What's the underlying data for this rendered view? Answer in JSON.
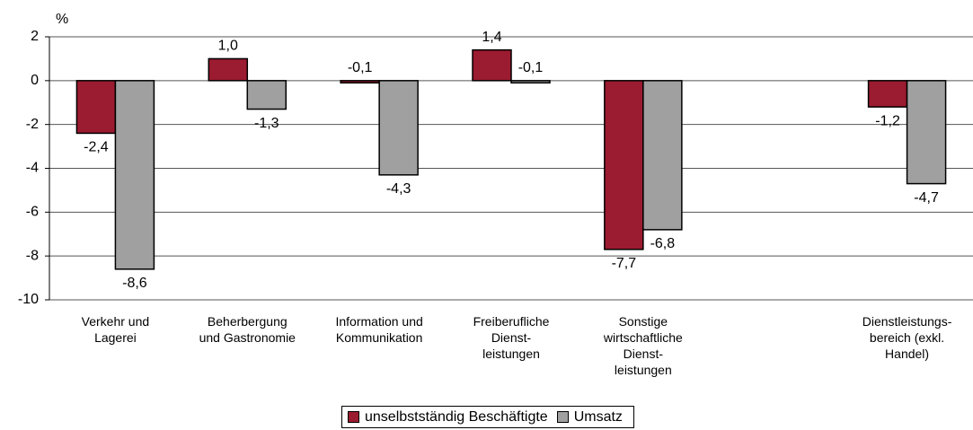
{
  "chart_data": {
    "type": "bar",
    "ylabel": "%",
    "categories": [
      "Verkehr und\nLagerei",
      "Beherbergung\nund Gastronomie",
      "Information und\nKommunikation",
      "Freiberufliche\nDienst-\nleistungen",
      "Sonstige\nwirtschaftliche\nDienst-\nleistungen",
      null,
      "Dienstleistungs-\nbereich (exkl.\nHandel)"
    ],
    "series": [
      {
        "name": "unselbstständig Beschäftigte",
        "color": "#9b1b30",
        "values": [
          -2.4,
          1.0,
          -0.1,
          1.4,
          -7.7,
          null,
          -1.2
        ],
        "value_labels": [
          "-2,4",
          "1,0",
          "-0,1",
          "1,4",
          "-7,7",
          null,
          "-1,2"
        ]
      },
      {
        "name": "Umsatz",
        "color": "#a0a0a0",
        "values": [
          -8.6,
          -1.3,
          -4.3,
          -0.1,
          -6.8,
          null,
          -4.7
        ],
        "value_labels": [
          "-8,6",
          "-1,3",
          "-4,3",
          "-0,1",
          "-6,8",
          null,
          "-4,7"
        ]
      }
    ],
    "ylim": [
      -10,
      2
    ],
    "yticks": [
      2,
      0,
      -2,
      -4,
      -6,
      -8,
      -10
    ],
    "grid": true,
    "legend": "bottom"
  }
}
